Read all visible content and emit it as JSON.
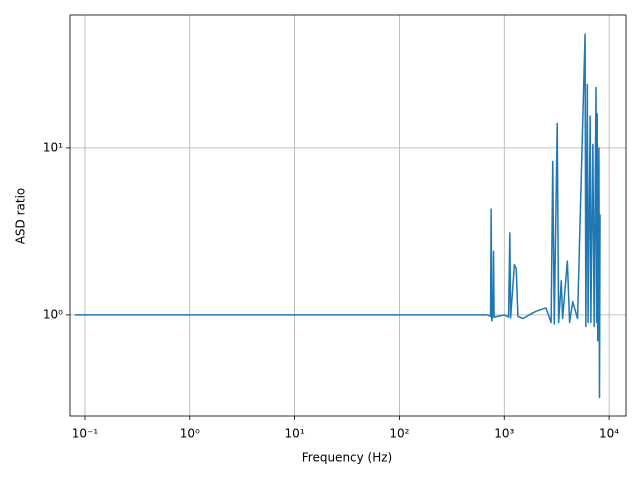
{
  "chart_data": {
    "type": "line",
    "xlabel": "Frequency (Hz)",
    "ylabel": "ASD ratio",
    "xscale": "log",
    "yscale": "log",
    "grid": true,
    "color": "#1f77b4",
    "xlim": [
      0.072,
      14500
    ],
    "ylim": [
      0.248,
      62.5
    ],
    "xticks": [
      {
        "value": 0.1,
        "label": "10⁻¹"
      },
      {
        "value": 1,
        "label": "10⁰"
      },
      {
        "value": 10,
        "label": "10¹"
      },
      {
        "value": 100,
        "label": "10²"
      },
      {
        "value": 1000,
        "label": "10³"
      },
      {
        "value": 10000,
        "label": "10⁴"
      }
    ],
    "yticks": [
      {
        "value": 1,
        "label": "10⁰"
      },
      {
        "value": 10,
        "label": "10¹"
      }
    ],
    "x": [
      0.08,
      100,
      700,
      740,
      750,
      760,
      780,
      790,
      800,
      1000,
      1100,
      1130,
      1150,
      1250,
      1300,
      1350,
      1500,
      2000,
      2500,
      2800,
      2900,
      3000,
      3200,
      3300,
      3500,
      3600,
      4000,
      4200,
      4500,
      5000,
      5900,
      6000,
      6200,
      6300,
      6600,
      6700,
      7000,
      7200,
      7500,
      7600,
      7700,
      7800,
      8000,
      8100,
      8200
    ],
    "values": [
      1,
      1,
      1,
      0.98,
      4.3,
      0.92,
      1,
      2.4,
      0.97,
      1,
      0.97,
      3.1,
      0.96,
      2.0,
      1.9,
      0.98,
      0.95,
      1.05,
      1.1,
      0.9,
      8.3,
      0.88,
      14,
      0.9,
      1.6,
      0.95,
      2.1,
      0.9,
      1.2,
      0.95,
      48,
      0.85,
      24,
      0.9,
      15.5,
      0.9,
      10.5,
      0.85,
      23,
      0.9,
      16,
      0.7,
      10,
      0.32,
      4
    ]
  }
}
